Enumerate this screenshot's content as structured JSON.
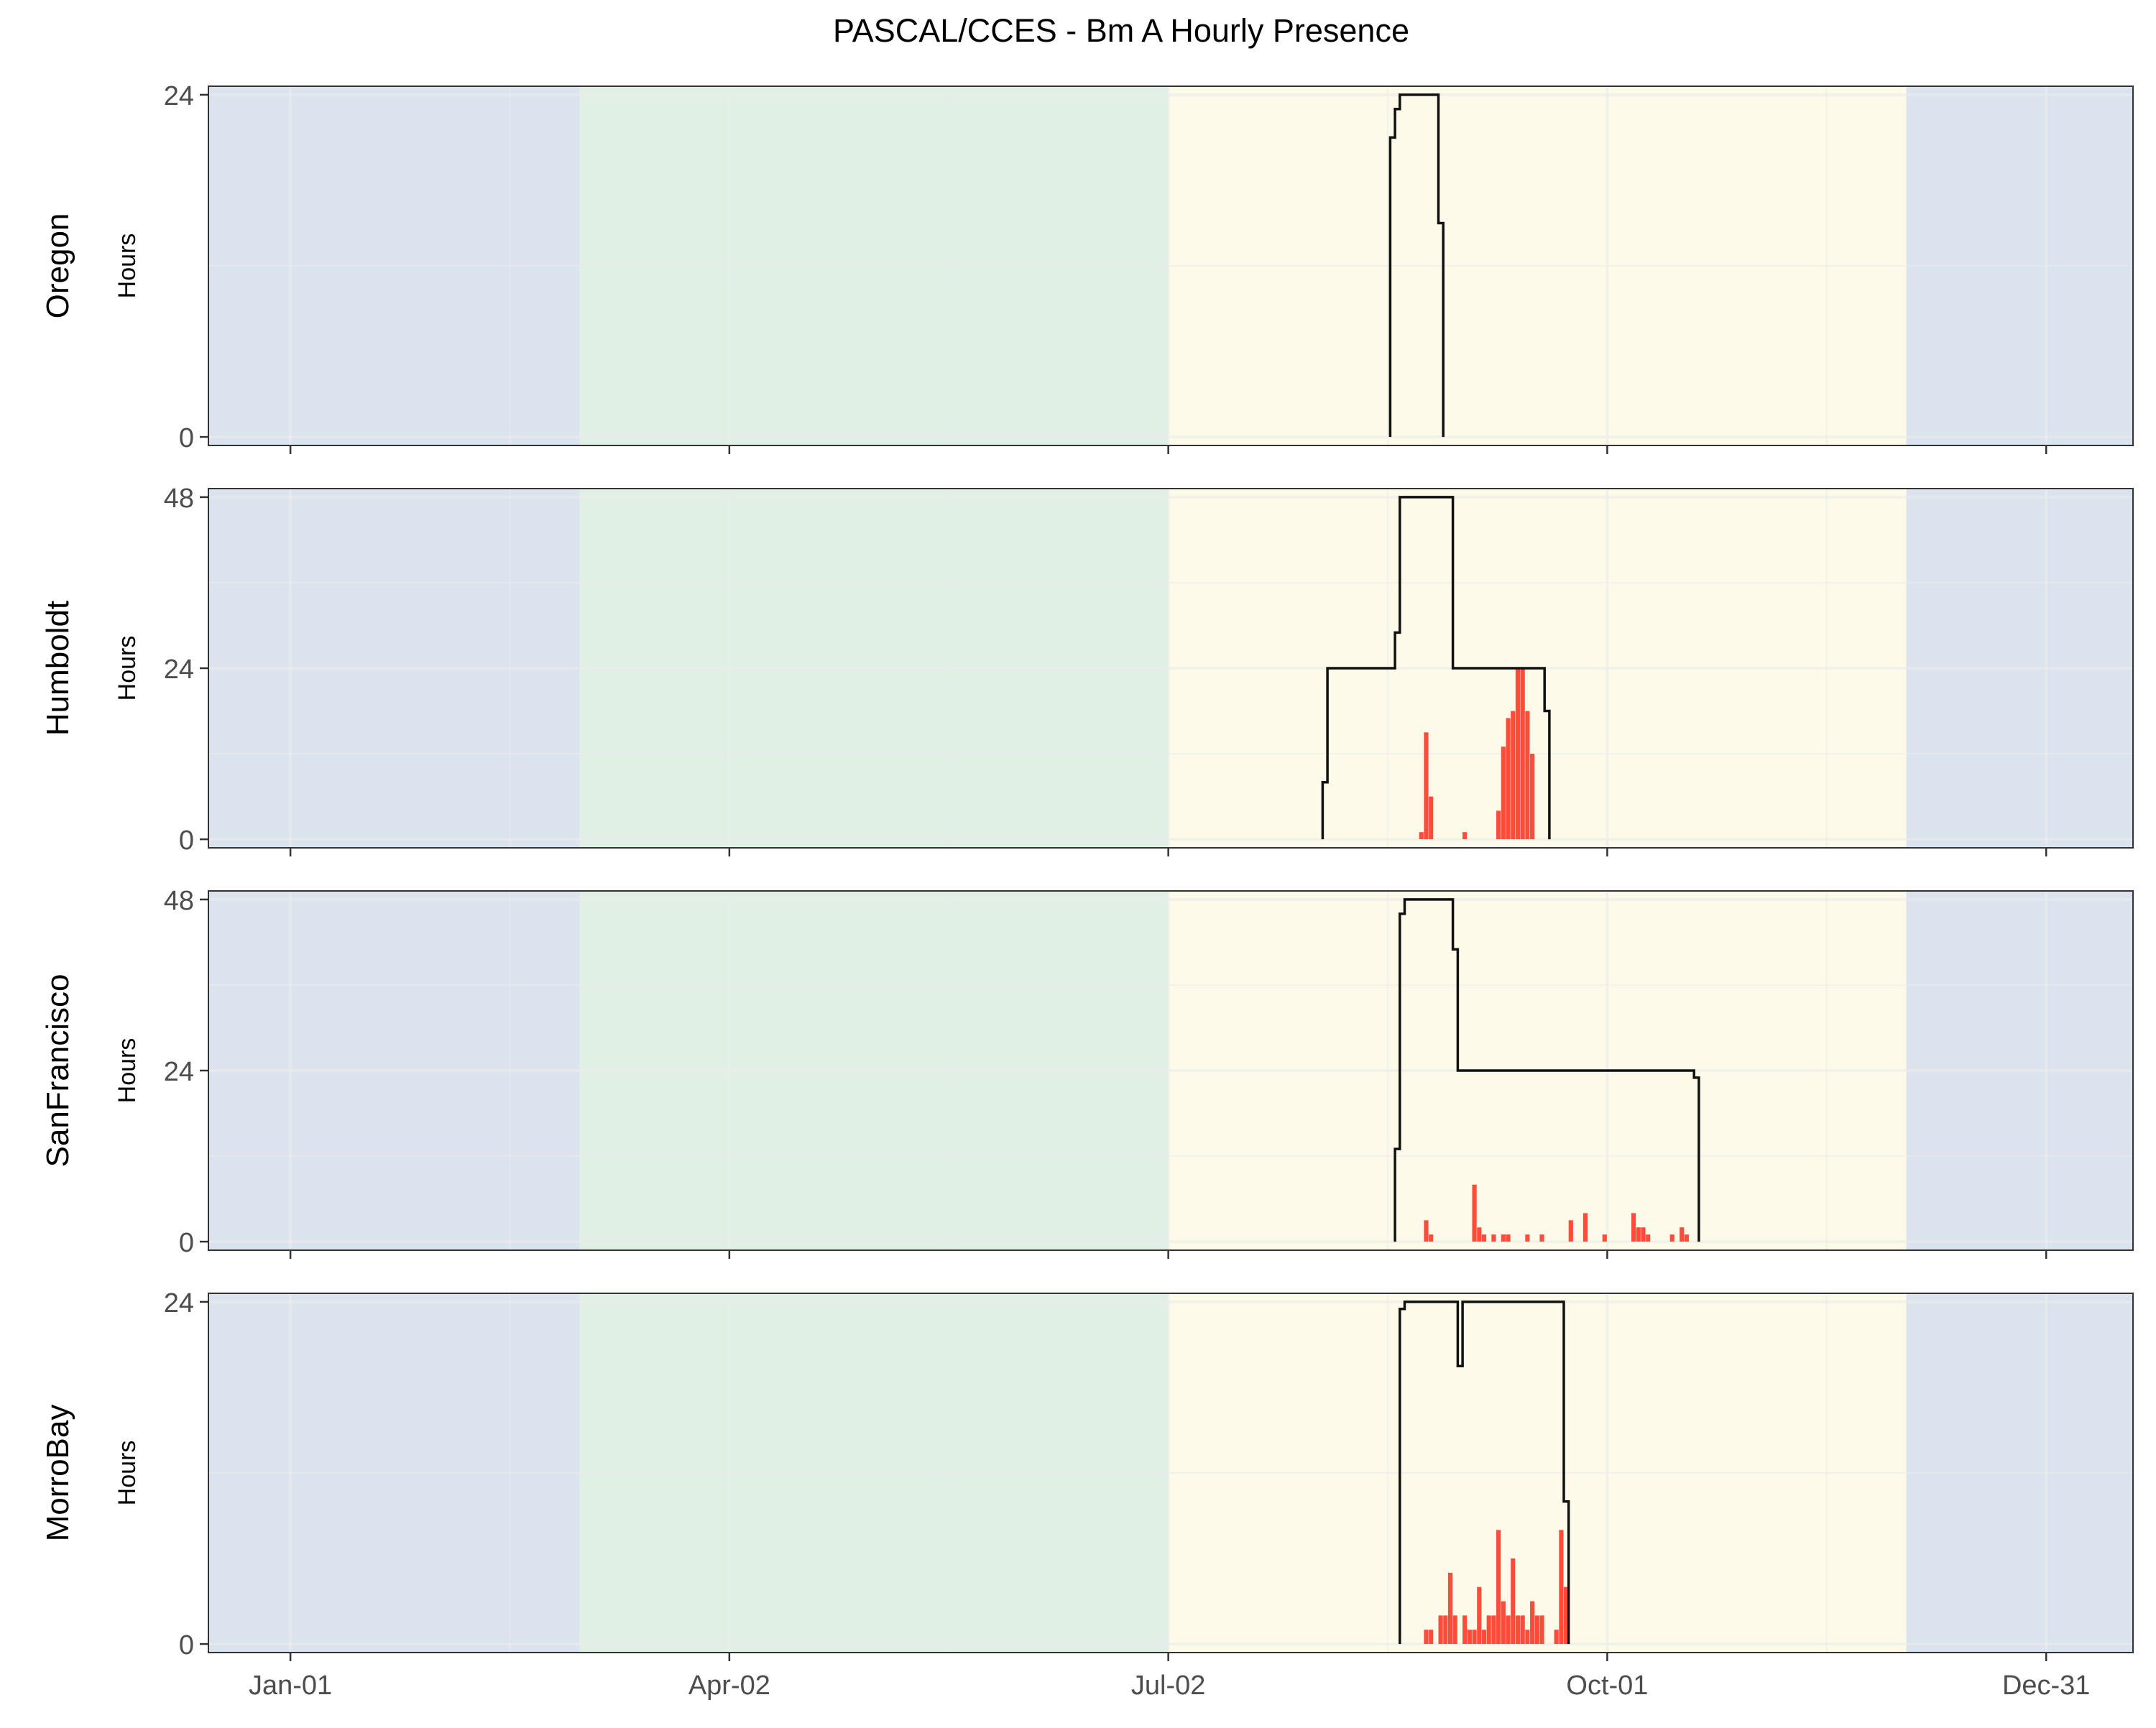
{
  "chart_data": {
    "type": "bar",
    "title": "PASCAL/CCES - Bm A Hourly Presence",
    "ylabel": "Hours",
    "x_tick_labels": [
      "Jan-01",
      "Apr-02",
      "Jul-02",
      "Oct-01",
      "Dec-31"
    ],
    "x_ticks_day": [
      0,
      91,
      182,
      273,
      364
    ],
    "x_range_day": [
      -17,
      382
    ],
    "season_bands": [
      {
        "start": -17,
        "end": 60,
        "color": "#dbe4ee"
      },
      {
        "start": 60,
        "end": 182,
        "color": "#e1f0e5"
      },
      {
        "start": 182,
        "end": 335,
        "color": "#fdfae9"
      },
      {
        "start": 335,
        "end": 382,
        "color": "#dbe4ee"
      }
    ],
    "colors": {
      "presence": "#ff4b39",
      "effort": "#111111",
      "grid": "#ebebeb",
      "border": "#333333"
    },
    "panels": [
      {
        "name": "Oregon",
        "y_ticks": [
          0,
          24
        ],
        "ylim": [
          -0.6,
          24.6
        ],
        "effort": [
          [
            228,
            0
          ],
          [
            228,
            21
          ],
          [
            229,
            21
          ],
          [
            229,
            23
          ],
          [
            230,
            23
          ],
          [
            230,
            24
          ],
          [
            238,
            24
          ],
          [
            238,
            15
          ],
          [
            239,
            15
          ],
          [
            239,
            0
          ]
        ],
        "presence": []
      },
      {
        "name": "Humboldt",
        "y_ticks": [
          0,
          24,
          48
        ],
        "ylim": [
          -1.2,
          49.2
        ],
        "effort": [
          [
            214,
            0
          ],
          [
            214,
            8
          ],
          [
            215,
            8
          ],
          [
            215,
            24
          ],
          [
            229,
            24
          ],
          [
            229,
            29
          ],
          [
            230,
            29
          ],
          [
            230,
            48
          ],
          [
            241,
            48
          ],
          [
            241,
            24
          ],
          [
            260,
            24
          ],
          [
            260,
            18
          ],
          [
            261,
            18
          ],
          [
            261,
            0
          ]
        ],
        "presence": [
          [
            234,
            1
          ],
          [
            235,
            15
          ],
          [
            236,
            6
          ],
          [
            243,
            1
          ],
          [
            250,
            4
          ],
          [
            251,
            13
          ],
          [
            252,
            17
          ],
          [
            253,
            18
          ],
          [
            254,
            24
          ],
          [
            255,
            24
          ],
          [
            256,
            18
          ],
          [
            257,
            12
          ]
        ]
      },
      {
        "name": "SanFrancisco",
        "y_ticks": [
          0,
          24,
          48
        ],
        "ylim": [
          -1.2,
          49.2
        ],
        "effort": [
          [
            229,
            0
          ],
          [
            229,
            13
          ],
          [
            230,
            13
          ],
          [
            230,
            46
          ],
          [
            231,
            46
          ],
          [
            231,
            48
          ],
          [
            241,
            48
          ],
          [
            241,
            41
          ],
          [
            242,
            41
          ],
          [
            242,
            24
          ],
          [
            291,
            24
          ],
          [
            291,
            23
          ],
          [
            292,
            23
          ],
          [
            292,
            0
          ]
        ],
        "presence": [
          [
            235,
            3
          ],
          [
            236,
            1
          ],
          [
            245,
            8
          ],
          [
            246,
            2
          ],
          [
            247,
            1
          ],
          [
            249,
            1
          ],
          [
            251,
            1
          ],
          [
            252,
            1
          ],
          [
            256,
            1
          ],
          [
            259,
            1
          ],
          [
            265,
            3
          ],
          [
            268,
            4
          ],
          [
            272,
            1
          ],
          [
            278,
            4
          ],
          [
            279,
            2
          ],
          [
            280,
            2
          ],
          [
            281,
            1
          ],
          [
            286,
            1
          ],
          [
            288,
            2
          ],
          [
            289,
            1
          ]
        ]
      },
      {
        "name": "MorroBay",
        "y_ticks": [
          0,
          24
        ],
        "ylim": [
          -0.6,
          24.6
        ],
        "effort": [
          [
            230,
            0
          ],
          [
            230,
            23.5
          ],
          [
            231,
            23.5
          ],
          [
            231,
            24
          ],
          [
            242,
            24
          ],
          [
            242,
            19.5
          ],
          [
            243,
            19.5
          ],
          [
            243,
            24
          ],
          [
            264,
            24
          ],
          [
            264,
            10
          ],
          [
            265,
            10
          ],
          [
            265,
            0
          ]
        ],
        "presence": [
          [
            235,
            1
          ],
          [
            236,
            1
          ],
          [
            238,
            2
          ],
          [
            239,
            2
          ],
          [
            240,
            5
          ],
          [
            241,
            2
          ],
          [
            243,
            2
          ],
          [
            244,
            1
          ],
          [
            245,
            1
          ],
          [
            246,
            4
          ],
          [
            247,
            1
          ],
          [
            248,
            2
          ],
          [
            249,
            2
          ],
          [
            250,
            8
          ],
          [
            251,
            3
          ],
          [
            252,
            2
          ],
          [
            253,
            6
          ],
          [
            254,
            2
          ],
          [
            255,
            2
          ],
          [
            256,
            1
          ],
          [
            257,
            3
          ],
          [
            258,
            2
          ],
          [
            259,
            2
          ],
          [
            262,
            1
          ],
          [
            263,
            8
          ],
          [
            264,
            4
          ]
        ]
      }
    ]
  }
}
